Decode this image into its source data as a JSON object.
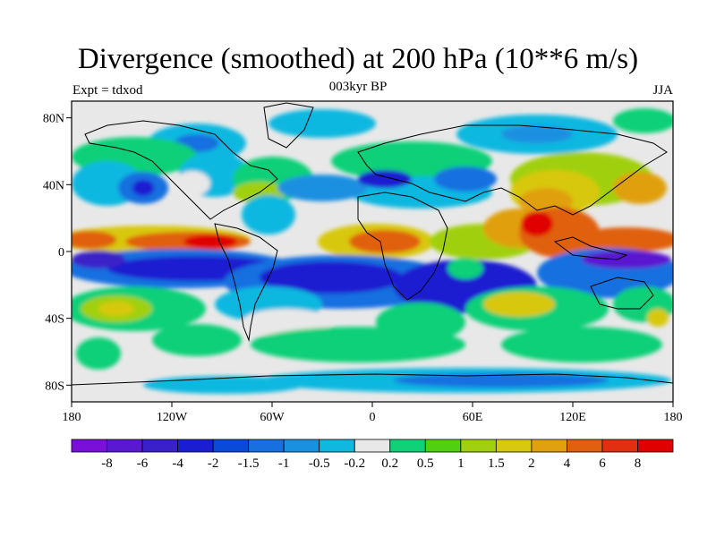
{
  "header": {
    "title": "Divergence (smoothed) at 200 hPa (10**6 m/s)",
    "subtitle": "003kyr BP",
    "left_label": "Expt = tdxod",
    "right_label": "JJA"
  },
  "axes": {
    "lat_ticks": [
      "80N",
      "40N",
      "0",
      "40S",
      "80S"
    ],
    "lon_ticks": [
      "180",
      "120W",
      "60W",
      "0",
      "60E",
      "120E",
      "180"
    ]
  },
  "colorbar": {
    "labels": [
      "-8",
      "-6",
      "-4",
      "-2",
      "-1.5",
      "-1",
      "-0.5",
      "-0.2",
      "0.2",
      "0.5",
      "1",
      "1.5",
      "2",
      "4",
      "6",
      "8"
    ],
    "colors": [
      "#7a10d8",
      "#5a18d0",
      "#3a20c8",
      "#1a1ed0",
      "#0a4ad8",
      "#1870e0",
      "#1a90e0",
      "#10b8e0",
      "#e8e8e8",
      "#10d078",
      "#50d010",
      "#a0d010",
      "#d8c810",
      "#e0a010",
      "#e06010",
      "#e03010",
      "#e00000"
    ]
  },
  "palette": {
    "neutral": "#e8e8e8",
    "coast": "#000000",
    "neg_strong": "#1a1ed0",
    "neg_mid": "#1870e0",
    "neg_weak": "#10b8e0",
    "pos_weak": "#10d078",
    "pos_mid": "#a0d010",
    "pos_strong": "#e03010"
  }
}
